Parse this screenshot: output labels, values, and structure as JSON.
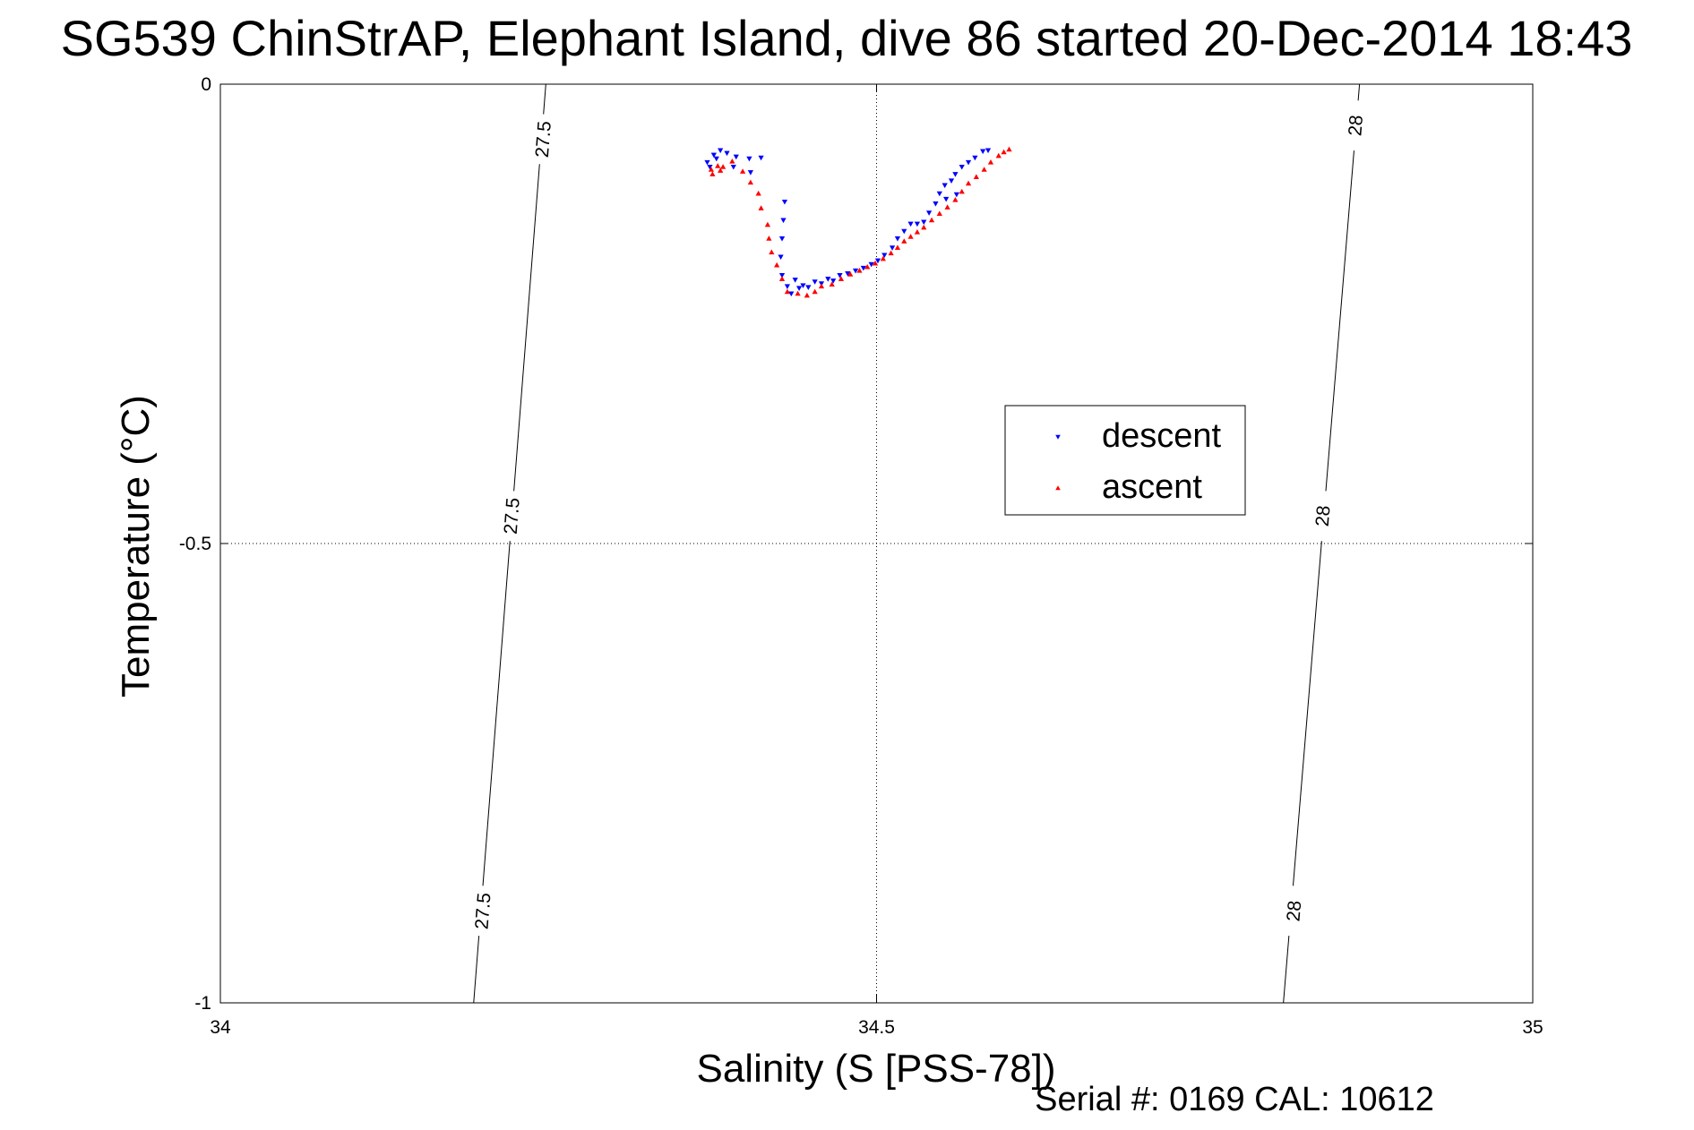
{
  "chart_data": {
    "type": "scatter",
    "title": "SG539 ChinStrAP, Elephant Island, dive 86 started 20-Dec-2014 18:43",
    "xlabel": "Salinity (S [PSS-78])",
    "ylabel": "Temperature (°C)",
    "xlim": [
      34,
      35
    ],
    "ylim": [
      -1,
      0
    ],
    "x_ticks": [
      34,
      34.5,
      35
    ],
    "x_tick_labels": [
      "34",
      "34.5",
      "35"
    ],
    "y_ticks": [
      0,
      -0.5,
      -1
    ],
    "y_tick_labels": [
      "0",
      "-0.5",
      "-1"
    ],
    "grid": true,
    "legend_position": "inside-right",
    "series": [
      {
        "name": "descent",
        "marker": "triangle-down",
        "color": "#0000ff",
        "points": [
          [
            34.376,
            -0.077
          ],
          [
            34.381,
            -0.072
          ],
          [
            34.386,
            -0.075
          ],
          [
            34.393,
            -0.079
          ],
          [
            34.403,
            -0.081
          ],
          [
            34.412,
            -0.08
          ],
          [
            34.371,
            -0.085
          ],
          [
            34.373,
            -0.09
          ],
          [
            34.378,
            -0.081
          ],
          [
            34.391,
            -0.09
          ],
          [
            34.404,
            -0.096
          ],
          [
            34.43,
            -0.128
          ],
          [
            34.429,
            -0.148
          ],
          [
            34.428,
            -0.168
          ],
          [
            34.427,
            -0.188
          ],
          [
            34.428,
            -0.208
          ],
          [
            34.432,
            -0.22
          ],
          [
            34.435,
            -0.228
          ],
          [
            34.438,
            -0.213
          ],
          [
            34.441,
            -0.222
          ],
          [
            34.444,
            -0.219
          ],
          [
            34.448,
            -0.221
          ],
          [
            34.453,
            -0.215
          ],
          [
            34.458,
            -0.217
          ],
          [
            34.463,
            -0.212
          ],
          [
            34.467,
            -0.214
          ],
          [
            34.472,
            -0.208
          ],
          [
            34.478,
            -0.206
          ],
          [
            34.484,
            -0.203
          ],
          [
            34.49,
            -0.2
          ],
          [
            34.496,
            -0.196
          ],
          [
            34.501,
            -0.192
          ],
          [
            34.506,
            -0.186
          ],
          [
            34.512,
            -0.178
          ],
          [
            34.516,
            -0.168
          ],
          [
            34.521,
            -0.16
          ],
          [
            34.526,
            -0.152
          ],
          [
            34.531,
            -0.152
          ],
          [
            34.536,
            -0.15
          ],
          [
            34.54,
            -0.14
          ],
          [
            34.545,
            -0.13
          ],
          [
            34.548,
            -0.119
          ],
          [
            34.552,
            -0.11
          ],
          [
            34.557,
            -0.105
          ],
          [
            34.56,
            -0.098
          ],
          [
            34.565,
            -0.09
          ],
          [
            34.57,
            -0.085
          ],
          [
            34.575,
            -0.08
          ],
          [
            34.581,
            -0.073
          ],
          [
            34.585,
            -0.072
          ],
          [
            34.553,
            -0.125
          ],
          [
            34.561,
            -0.12
          ]
        ]
      },
      {
        "name": "ascent",
        "marker": "triangle-up",
        "color": "#ff0000",
        "points": [
          [
            34.374,
            -0.093
          ],
          [
            34.379,
            -0.089
          ],
          [
            34.383,
            -0.09
          ],
          [
            34.39,
            -0.084
          ],
          [
            34.398,
            -0.095
          ],
          [
            34.404,
            -0.107
          ],
          [
            34.41,
            -0.119
          ],
          [
            34.412,
            -0.135
          ],
          [
            34.417,
            -0.153
          ],
          [
            34.418,
            -0.168
          ],
          [
            34.42,
            -0.183
          ],
          [
            34.424,
            -0.197
          ],
          [
            34.428,
            -0.212
          ],
          [
            34.432,
            -0.226
          ],
          [
            34.44,
            -0.228
          ],
          [
            34.447,
            -0.23
          ],
          [
            34.453,
            -0.226
          ],
          [
            34.458,
            -0.22
          ],
          [
            34.466,
            -0.218
          ],
          [
            34.473,
            -0.212
          ],
          [
            34.48,
            -0.207
          ],
          [
            34.487,
            -0.203
          ],
          [
            34.493,
            -0.199
          ],
          [
            34.499,
            -0.195
          ],
          [
            34.505,
            -0.19
          ],
          [
            34.511,
            -0.184
          ],
          [
            34.516,
            -0.178
          ],
          [
            34.521,
            -0.171
          ],
          [
            34.526,
            -0.166
          ],
          [
            34.531,
            -0.161
          ],
          [
            34.536,
            -0.156
          ],
          [
            34.542,
            -0.148
          ],
          [
            34.548,
            -0.141
          ],
          [
            34.554,
            -0.134
          ],
          [
            34.56,
            -0.126
          ],
          [
            34.565,
            -0.117
          ],
          [
            34.57,
            -0.108
          ],
          [
            34.576,
            -0.101
          ],
          [
            34.582,
            -0.093
          ],
          [
            34.587,
            -0.085
          ],
          [
            34.593,
            -0.078
          ],
          [
            34.597,
            -0.074
          ],
          [
            34.601,
            -0.071
          ],
          [
            34.375,
            -0.098
          ],
          [
            34.381,
            -0.094
          ]
        ]
      }
    ],
    "contours": [
      {
        "level_label": "27.5",
        "line": [
          [
            34.193,
            -1
          ],
          [
            34.248,
            0
          ]
        ],
        "labels": [
          [
            34.246,
            -0.06
          ],
          [
            34.222,
            -0.47
          ],
          [
            34.2,
            -0.9
          ]
        ]
      },
      {
        "level_label": "28",
        "line": [
          [
            34.81,
            -1
          ],
          [
            34.868,
            0
          ]
        ],
        "labels": [
          [
            34.865,
            -0.045
          ],
          [
            34.84,
            -0.47
          ],
          [
            34.818,
            -0.9
          ]
        ]
      }
    ]
  },
  "footer": {
    "serial_text": "Serial #: 0169 CAL: 10612"
  }
}
